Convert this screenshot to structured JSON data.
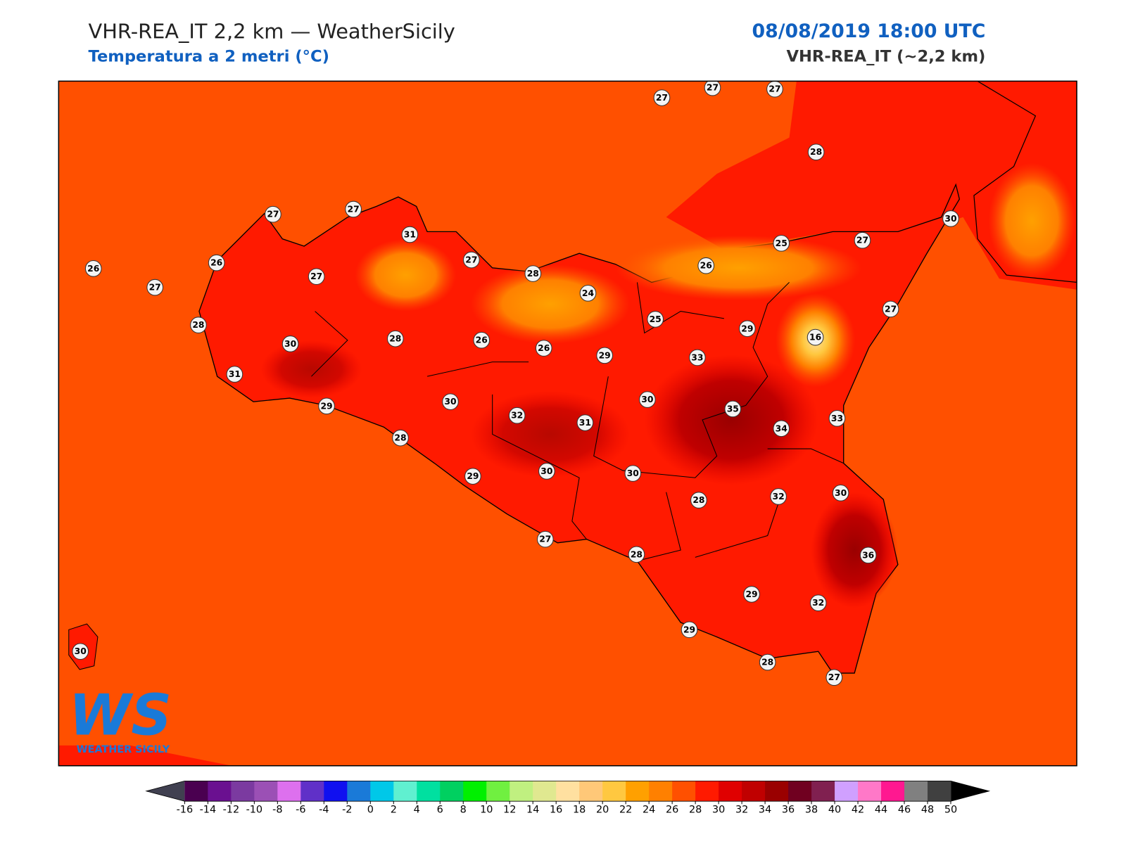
{
  "header": {
    "title": "VHR-REA_IT 2,2 km — WeatherSicily",
    "subtitle": "Temperatura a 2 metri (°C)",
    "datetime": "08/08/2019 18:00 UTC",
    "model": "VHR-REA_IT (~2,2 km)"
  },
  "map": {
    "stations": [
      27,
      27,
      27,
      28,
      27,
      27,
      31,
      30,
      27,
      25,
      26,
      26,
      27,
      27,
      27,
      28,
      26,
      24,
      25,
      27,
      28,
      29,
      16,
      30,
      28,
      26,
      26,
      29,
      33,
      31,
      30,
      30,
      29,
      32,
      31,
      35,
      34,
      33,
      28,
      29,
      30,
      30,
      28,
      32,
      30,
      27,
      28,
      36,
      29,
      32,
      29,
      30,
      28,
      27
    ]
  },
  "logo": {
    "text": "WS",
    "caption": "WEATHER SICILY"
  },
  "colorbar": {
    "ticks": [
      -16,
      -14,
      -12,
      -10,
      -8,
      -6,
      -4,
      -2,
      0,
      2,
      4,
      6,
      8,
      10,
      12,
      14,
      16,
      18,
      20,
      22,
      24,
      26,
      28,
      30,
      32,
      34,
      36,
      38,
      40,
      42,
      44,
      46,
      48,
      50
    ],
    "colors": [
      "#4a0050",
      "#6a1090",
      "#7b3aa0",
      "#9b50b5",
      "#dd70ee",
      "#6030c8",
      "#1010f0",
      "#1a7ad8",
      "#00c8e8",
      "#60f0d0",
      "#00e0a0",
      "#00d060",
      "#00f000",
      "#70f040",
      "#c0f080",
      "#e0e890",
      "#ffe0a0",
      "#ffc878",
      "#ffc840",
      "#ffa000",
      "#ff8000",
      "#ff5000",
      "#ff1a00",
      "#e00000",
      "#c00000",
      "#9a0000",
      "#700020",
      "#802050",
      "#d0a0ff",
      "#ff78c8",
      "#ff1890",
      "#808080",
      "#404040"
    ],
    "under": "#404050",
    "over": "#000000"
  }
}
